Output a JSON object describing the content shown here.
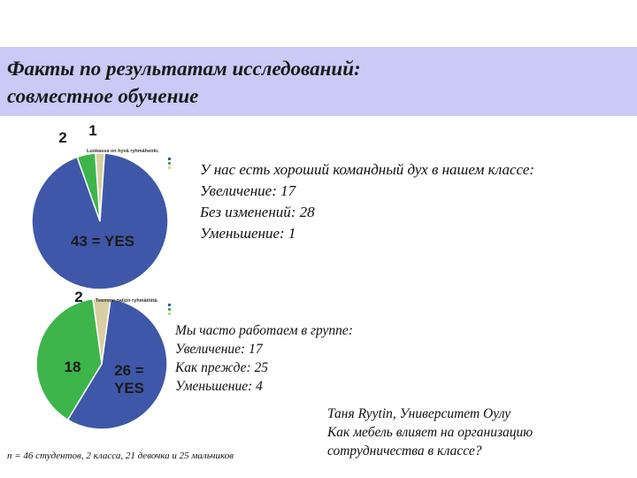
{
  "slide": {
    "title_line1": "Факты по результатам исследований:",
    "title_line2": "совместное обучение",
    "footer": "n = 46 студентов, 2 класса, 21 девочка и 25 мальчиков",
    "author_line1": "Таня Ryytin, Университет Оулу",
    "author_line2": "Как мебель влияет на организацию",
    "author_line3": "сотрудничества в классе?"
  },
  "chart_data": [
    {
      "type": "pie",
      "title": "Luokassa on hyvä ryhmähenki.",
      "legend_position": "right",
      "slices": [
        {
          "label": "43 = YES",
          "value": 43,
          "color": "#3f57a8"
        },
        {
          "label": "2",
          "value": 2,
          "color": "#3db54a"
        },
        {
          "label": "1",
          "value": 1,
          "color": "#d8cfa2"
        }
      ],
      "description_lines": [
        "У нас есть хороший командный дух в нашем классе:",
        "Увеличение: 17",
        "Без изменений: 28",
        "Уменьшение: 1"
      ]
    },
    {
      "type": "pie",
      "title": "Teemme paljon ryhmätöitä.",
      "legend_position": "right",
      "slices": [
        {
          "label": "26 = YES",
          "value": 26,
          "color": "#3f57a8"
        },
        {
          "label": "18",
          "value": 18,
          "color": "#3db54a"
        },
        {
          "label": "2",
          "value": 2,
          "color": "#d8cfa2"
        }
      ],
      "description_lines": [
        "Мы часто работаем в группе:",
        "Увеличение: 17",
        "Как прежде: 25",
        "Уменьшение: 4"
      ]
    }
  ]
}
